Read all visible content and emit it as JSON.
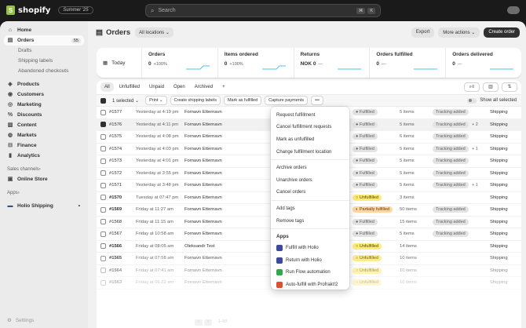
{
  "topbar": {
    "brand": "shopify",
    "edition": "Summer '25",
    "search_placeholder": "Search",
    "kbd1": "⌘",
    "kbd2": "K"
  },
  "sidebar": {
    "items": [
      {
        "label": "Home",
        "icon": "home-icon"
      },
      {
        "label": "Orders",
        "icon": "orders-icon",
        "badge": "55"
      },
      {
        "label": "Drafts"
      },
      {
        "label": "Shipping labels"
      },
      {
        "label": "Abandoned checkouts"
      },
      {
        "label": "Products",
        "icon": "tag-icon"
      },
      {
        "label": "Customers",
        "icon": "person-icon"
      },
      {
        "label": "Marketing",
        "icon": "target-icon"
      },
      {
        "label": "Discounts",
        "icon": "discount-icon"
      },
      {
        "label": "Content",
        "icon": "content-icon"
      },
      {
        "label": "Markets",
        "icon": "globe-icon"
      },
      {
        "label": "Finance",
        "icon": "bank-icon"
      },
      {
        "label": "Analytics",
        "icon": "chart-icon"
      }
    ],
    "sales_channels_label": "Sales channels",
    "online_store": "Online Store",
    "apps_label": "Apps",
    "app_item": "Holio Shipping",
    "settings": "Settings"
  },
  "header": {
    "title": "Orders",
    "locations": "All locations",
    "export": "Export",
    "more_actions": "More actions",
    "create_order": "Create order"
  },
  "stats": {
    "today": "Today",
    "cards": [
      {
        "label": "Orders",
        "value": "0",
        "pct": "+100%"
      },
      {
        "label": "Items ordered",
        "value": "0",
        "pct": "+100%"
      },
      {
        "label": "Returns",
        "value": "NOK 0",
        "pct": "—"
      },
      {
        "label": "Orders fulfilled",
        "value": "0",
        "pct": "—"
      },
      {
        "label": "Orders delivered",
        "value": "0",
        "pct": "—"
      }
    ]
  },
  "tabs": [
    "All",
    "Unfulfilled",
    "Unpaid",
    "Open",
    "Archived",
    "+"
  ],
  "bulk": {
    "selected": "1 selected",
    "print": "Print",
    "create_labels": "Create shipping labels",
    "mark_fulfilled": "Mark as fulfilled",
    "capture": "Capture payments",
    "more": "•••",
    "show_all": "Show all selected"
  },
  "orders": [
    {
      "id": "#1577",
      "date": "Yesterday at 4:19 pm",
      "customer": "Fornavn Etternavn",
      "status": "Fulfilled",
      "items": "5 items",
      "delivery": "Tracking added",
      "plus": "",
      "ship": "Shipping"
    },
    {
      "id": "#1576",
      "date": "Yesterday at 4:11 pm",
      "customer": "Fornavn Etternavn",
      "status": "Fulfilled",
      "items": "5 items",
      "delivery": "Tracking added",
      "plus": "+ 2",
      "ship": "Shipping"
    },
    {
      "id": "#1575",
      "date": "Yesterday at 4:08 pm",
      "customer": "Fornavn Etternavn",
      "status": "Fulfilled",
      "items": "6 items",
      "delivery": "Tracking added",
      "plus": "",
      "ship": "Shipping"
    },
    {
      "id": "#1574",
      "date": "Yesterday at 4:03 pm",
      "customer": "Fornavn Etternavn",
      "status": "Fulfilled",
      "items": "5 items",
      "delivery": "Tracking added",
      "plus": "+ 1",
      "ship": "Shipping"
    },
    {
      "id": "#1573",
      "date": "Yesterday at 4:01 pm",
      "customer": "Fornavn Etternavn",
      "status": "Fulfilled",
      "items": "5 items",
      "delivery": "Tracking added",
      "plus": "",
      "ship": "Shipping"
    },
    {
      "id": "#1572",
      "date": "Yesterday at 3:55 pm",
      "customer": "Fornavn Etternavn",
      "status": "Fulfilled",
      "items": "5 items",
      "delivery": "Tracking added",
      "plus": "",
      "ship": "Shipping"
    },
    {
      "id": "#1571",
      "date": "Yesterday at 3:48 pm",
      "customer": "Fornavn Etternavn",
      "status": "Fulfilled",
      "items": "5 items",
      "delivery": "Tracking added",
      "plus": "+ 1",
      "ship": "Shipping"
    },
    {
      "id": "#1570",
      "date": "Tuesday at 07:47 pm",
      "customer": "Fornavn Etternavn",
      "status": "Unfulfilled",
      "items": "3 items",
      "delivery": "",
      "plus": "",
      "ship": "Shipping"
    },
    {
      "id": "#1569",
      "date": "Friday at 11:27 am",
      "customer": "Fornavn Etternavn",
      "status": "Partially fulfilled",
      "items": "50 items",
      "delivery": "Tracking added",
      "plus": "",
      "ship": "Shipping"
    },
    {
      "id": "#1568",
      "date": "Friday at 11:15 am",
      "customer": "Fornavn Etternavn",
      "status": "Fulfilled",
      "items": "15 items",
      "delivery": "Tracking added",
      "plus": "",
      "ship": "Shipping"
    },
    {
      "id": "#1567",
      "date": "Friday at 10:58 am",
      "customer": "Fornavn Etternavn",
      "status": "Fulfilled",
      "items": "5 items",
      "delivery": "Tracking added",
      "plus": "",
      "ship": "Shipping"
    },
    {
      "id": "#1566",
      "date": "Friday at 08:05 am",
      "customer": "Oleksandr Test",
      "status": "Unfulfilled",
      "items": "14 items",
      "delivery": "",
      "plus": "",
      "ship": "Shipping"
    },
    {
      "id": "#1565",
      "date": "Friday at 07:58 am",
      "customer": "Fornavn Etternavn",
      "status": "Unfulfilled",
      "items": "10 items",
      "delivery": "",
      "plus": "",
      "ship": "Shipping"
    },
    {
      "id": "#1564",
      "date": "Friday at 07:41 am",
      "customer": "Fornavn Etternavn",
      "status": "Unfulfilled",
      "items": "10 items",
      "delivery": "",
      "plus": "",
      "ship": "Shipping"
    },
    {
      "id": "#1563",
      "date": "Friday at 06:22 am",
      "customer": "Fornavn Etternavn",
      "status": "Unfulfilled",
      "items": "10 items",
      "delivery": "",
      "plus": "",
      "ship": "Shipping"
    }
  ],
  "menu": {
    "items": [
      "Request fulfillment",
      "Cancel fulfillment requests",
      "Mark as unfulfilled",
      "Change fulfillment location",
      "|",
      "Archive orders",
      "Unarchive orders",
      "Cancel orders",
      "|",
      "Add tags",
      "Remove tags",
      "|"
    ],
    "apps_heading": "Apps",
    "apps": [
      {
        "label": "Fulfill with Holio",
        "color": "#3b4a9a"
      },
      {
        "label": "Return with Holio",
        "color": "#3b4a9a"
      },
      {
        "label": "Run Flow automation",
        "color": "#2fa84f"
      },
      {
        "label": "Auto-fulfill with Profrakt!2",
        "color": "#e04f2e"
      }
    ]
  },
  "pager": {
    "text": "1–50"
  },
  "colors": {
    "accent": "#303030",
    "fulfilled_bg": "#e3e3e3",
    "unfulfilled_bg": "#ffeb78",
    "partial_bg": "#ffd6a4"
  }
}
